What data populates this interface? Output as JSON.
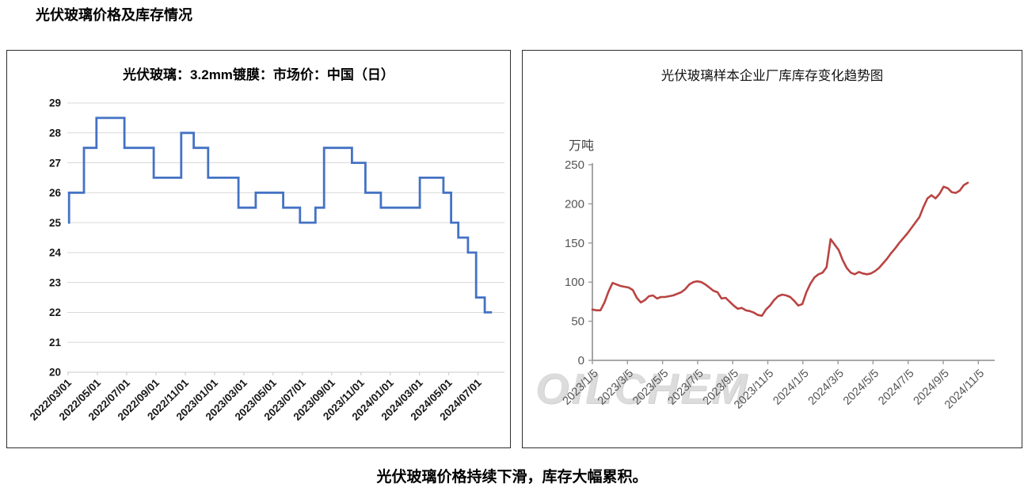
{
  "page": {
    "title": "光伏玻璃价格及库存情况",
    "caption": "光伏玻璃价格持续下滑，库存大幅累积。",
    "watermark": "OILCHEM"
  },
  "colors": {
    "price_line": "#4472C4",
    "inventory_line": "#B94442",
    "gridline": "#D9D9D9",
    "left_axis": "#C9C9C9",
    "right_axis": "#9b9b9b",
    "left_label": "#171717",
    "right_label": "#555555",
    "border": "#2e2e2e",
    "watermark": "#dcdcdc"
  },
  "chart_data": [
    {
      "type": "line",
      "variant": "step",
      "title": "光伏玻璃：3.2mm镀膜：市场价：中国（日）",
      "xlabel": "",
      "ylabel": "",
      "ylim": [
        20,
        29
      ],
      "y_ticks": [
        20,
        21,
        22,
        23,
        24,
        25,
        26,
        27,
        28,
        29
      ],
      "grid": "horizontal",
      "legend_position": "none",
      "x_tick_labels": [
        "2022/03/01",
        "2022/05/01",
        "2022/07/01",
        "2022/09/01",
        "2022/11/01",
        "2023/01/01",
        "2023/03/01",
        "2023/05/01",
        "2023/07/01",
        "2023/09/01",
        "2023/11/01",
        "2024/01/01",
        "2024/03/01",
        "2024/05/01",
        "2024/07/01"
      ],
      "x_start": "2022/03/01",
      "x_end": "2024/07/29",
      "x_tick_interval_months": 2,
      "series": [
        {
          "points": [
            [
              "2022/03/01",
              25.0
            ],
            [
              "2022/03/03",
              26.0
            ],
            [
              "2022/04/03",
              27.5
            ],
            [
              "2022/04/29",
              28.5
            ],
            [
              "2022/06/26",
              27.5
            ],
            [
              "2022/08/26",
              26.5
            ],
            [
              "2022/10/22",
              28.0
            ],
            [
              "2022/11/17",
              27.5
            ],
            [
              "2022/12/17",
              26.5
            ],
            [
              "2023/02/18",
              25.5
            ],
            [
              "2023/03/26",
              26.0
            ],
            [
              "2023/05/22",
              25.5
            ],
            [
              "2023/06/26",
              25.0
            ],
            [
              "2023/07/28",
              25.5
            ],
            [
              "2023/08/15",
              27.5
            ],
            [
              "2023/10/12",
              27.0
            ],
            [
              "2023/11/09",
              26.0
            ],
            [
              "2023/12/11",
              25.5
            ],
            [
              "2024/03/01",
              26.5
            ],
            [
              "2024/04/19",
              26.0
            ],
            [
              "2024/05/05",
              25.0
            ],
            [
              "2024/05/20",
              24.5
            ],
            [
              "2024/06/09",
              24.0
            ],
            [
              "2024/06/26",
              22.5
            ],
            [
              "2024/07/14",
              22.0
            ]
          ]
        }
      ]
    },
    {
      "type": "line",
      "variant": "plain",
      "title": "光伏玻璃样本企业厂库库存变化趋势图",
      "xlabel": "",
      "ylabel": "万吨",
      "ylim": [
        0,
        250
      ],
      "y_ticks": [
        0,
        50,
        100,
        150,
        200,
        250
      ],
      "grid": "none",
      "legend_position": "none",
      "x_tick_labels": [
        "2023/1/5",
        "2023/3/5",
        "2023/5/5",
        "2023/7/5",
        "2023/9/5",
        "2023/11/5",
        "2024/1/5",
        "2024/3/5",
        "2024/5/5",
        "2024/7/5",
        "2024/9/5",
        "2024/11/5"
      ],
      "x_start": "2023/1/5",
      "x_end": "2024/10/17",
      "x_tick_interval_months": 2,
      "series": [
        {
          "points": [
            [
              "2023/1/5",
              65
            ],
            [
              "2023/1/12",
              64
            ],
            [
              "2023/1/19",
              64
            ],
            [
              "2023/1/26",
              74
            ],
            [
              "2023/2/2",
              88
            ],
            [
              "2023/2/9",
              99
            ],
            [
              "2023/2/16",
              97
            ],
            [
              "2023/2/23",
              95
            ],
            [
              "2023/3/2",
              94
            ],
            [
              "2023/3/9",
              93
            ],
            [
              "2023/3/16",
              90
            ],
            [
              "2023/3/23",
              80
            ],
            [
              "2023/3/30",
              74
            ],
            [
              "2023/4/6",
              77
            ],
            [
              "2023/4/13",
              82
            ],
            [
              "2023/4/20",
              83
            ],
            [
              "2023/4/27",
              79
            ],
            [
              "2023/5/4",
              81
            ],
            [
              "2023/5/11",
              81
            ],
            [
              "2023/5/18",
              82
            ],
            [
              "2023/5/25",
              83
            ],
            [
              "2023/6/1",
              85
            ],
            [
              "2023/6/8",
              87
            ],
            [
              "2023/6/15",
              91
            ],
            [
              "2023/6/22",
              97
            ],
            [
              "2023/6/29",
              100
            ],
            [
              "2023/7/6",
              101
            ],
            [
              "2023/7/13",
              100
            ],
            [
              "2023/7/20",
              97
            ],
            [
              "2023/7/27",
              93
            ],
            [
              "2023/8/3",
              89
            ],
            [
              "2023/8/10",
              87
            ],
            [
              "2023/8/17",
              79
            ],
            [
              "2023/8/24",
              80
            ],
            [
              "2023/8/31",
              75
            ],
            [
              "2023/9/7",
              70
            ],
            [
              "2023/9/14",
              66
            ],
            [
              "2023/9/21",
              67
            ],
            [
              "2023/9/28",
              64
            ],
            [
              "2023/10/5",
              63
            ],
            [
              "2023/10/12",
              61
            ],
            [
              "2023/10/19",
              58
            ],
            [
              "2023/10/26",
              57
            ],
            [
              "2023/11/2",
              65
            ],
            [
              "2023/11/9",
              70
            ],
            [
              "2023/11/16",
              77
            ],
            [
              "2023/11/23",
              82
            ],
            [
              "2023/11/30",
              84
            ],
            [
              "2023/12/7",
              83
            ],
            [
              "2023/12/14",
              81
            ],
            [
              "2023/12/21",
              76
            ],
            [
              "2023/12/28",
              70
            ],
            [
              "2024/1/4",
              72
            ],
            [
              "2024/1/11",
              87
            ],
            [
              "2024/1/18",
              98
            ],
            [
              "2024/1/25",
              106
            ],
            [
              "2024/2/1",
              110
            ],
            [
              "2024/2/8",
              112
            ],
            [
              "2024/2/15",
              119
            ],
            [
              "2024/2/22",
              155
            ],
            [
              "2024/2/29",
              148
            ],
            [
              "2024/3/7",
              141
            ],
            [
              "2024/3/14",
              128
            ],
            [
              "2024/3/21",
              118
            ],
            [
              "2024/3/28",
              112
            ],
            [
              "2024/4/4",
              110
            ],
            [
              "2024/4/11",
              113
            ],
            [
              "2024/4/18",
              111
            ],
            [
              "2024/4/25",
              110
            ],
            [
              "2024/5/2",
              111
            ],
            [
              "2024/5/9",
              114
            ],
            [
              "2024/5/16",
              118
            ],
            [
              "2024/5/23",
              124
            ],
            [
              "2024/5/30",
              130
            ],
            [
              "2024/6/6",
              137
            ],
            [
              "2024/6/13",
              143
            ],
            [
              "2024/6/20",
              150
            ],
            [
              "2024/6/27",
              156
            ],
            [
              "2024/7/4",
              162
            ],
            [
              "2024/7/11",
              169
            ],
            [
              "2024/7/18",
              176
            ],
            [
              "2024/7/25",
              183
            ],
            [
              "2024/8/1",
              196
            ],
            [
              "2024/8/8",
              207
            ],
            [
              "2024/8/15",
              211
            ],
            [
              "2024/8/22",
              207
            ],
            [
              "2024/8/29",
              213
            ],
            [
              "2024/9/5",
              222
            ],
            [
              "2024/9/12",
              220
            ],
            [
              "2024/9/19",
              215
            ],
            [
              "2024/9/26",
              214
            ],
            [
              "2024/10/3",
              217
            ],
            [
              "2024/10/10",
              224
            ],
            [
              "2024/10/17",
              227
            ]
          ]
        }
      ]
    }
  ]
}
